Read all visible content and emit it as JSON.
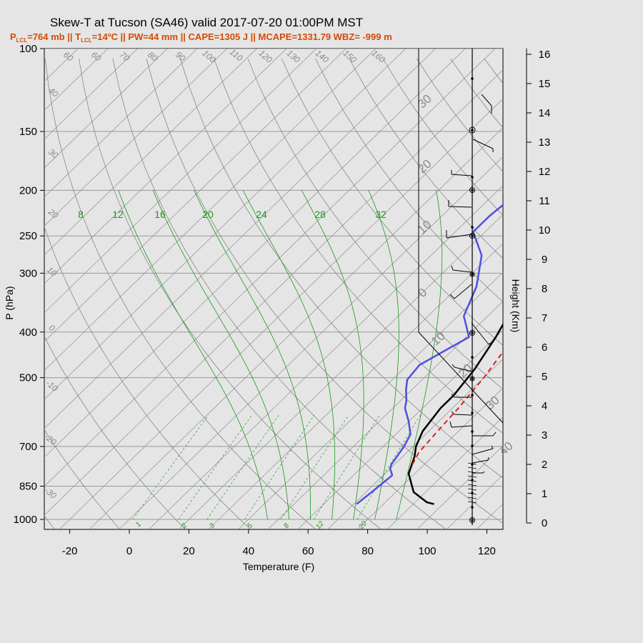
{
  "header": {
    "title": "Skew-T at Tucson (SA46) valid 2017-07-20 01:00PM MST",
    "subtitle": "P<tspan baseline-shift='sub' font-size='8'>LCL</tspan>=764 mb || T<tspan baseline-shift='sub' font-size='8'>LCL</tspan>=14ºC || PW=44 mm || CAPE=1305 J || MCAPE=1331.79 WBZ= -999 m",
    "subtitle_plain": {
      "p_lcl_label": "P",
      "p_lcl_sub": "LCL",
      "p_lcl_value": "=764 mb || T",
      "t_lcl_sub": "LCL",
      "rest": "=14ºC || PW=44 mm || CAPE=1305 J || MCAPE=1331.79 WBZ= -999 m"
    }
  },
  "colors": {
    "background": "#e5e5e5",
    "temperature": "#000000",
    "dewpoint": "#4f4fe0",
    "parcel": "#dd1111",
    "mixing_ratio": "#1a9a1a",
    "isotherm": "#8a8a8a"
  },
  "chart_data": {
    "type": "line",
    "xlabel": "Temperature (F)",
    "ylabel": "P (hPa)",
    "right_label": "Height (Km)",
    "xlim": [
      -28,
      125
    ],
    "ylim": [
      1000,
      100
    ],
    "y_scale": "log",
    "x_ticks": [
      -20,
      0,
      20,
      40,
      60,
      80,
      100,
      120
    ],
    "pressure_ticks": [
      100,
      150,
      200,
      250,
      300,
      400,
      500,
      700,
      850,
      1000
    ],
    "height_ticks": [
      0,
      1,
      2,
      3,
      4,
      5,
      6,
      7,
      8,
      9,
      10,
      11,
      12,
      13,
      14,
      15,
      16
    ],
    "grid": true,
    "series": [
      {
        "key": "temperature",
        "points": [
          [
            97,
            928
          ],
          [
            94,
            920
          ],
          [
            86,
            875
          ],
          [
            78,
            800
          ],
          [
            74,
            735
          ],
          [
            71,
            700
          ],
          [
            68,
            650
          ],
          [
            66,
            580
          ],
          [
            66,
            545
          ],
          [
            64,
            480
          ],
          [
            60,
            410
          ],
          [
            55,
            350
          ],
          [
            49,
            300
          ],
          [
            42,
            252
          ],
          [
            36,
            217
          ],
          [
            31,
            190
          ],
          [
            29,
            172
          ],
          [
            28,
            153
          ],
          [
            31,
            130
          ],
          [
            39,
            112
          ],
          [
            44,
            100
          ]
        ]
      },
      {
        "key": "dewpoint",
        "points": [
          [
            71,
            928
          ],
          [
            72,
            870
          ],
          [
            73,
            806
          ],
          [
            70,
            780
          ],
          [
            69,
            765
          ],
          [
            67,
            700
          ],
          [
            65,
            660
          ],
          [
            60,
            620
          ],
          [
            54,
            580
          ],
          [
            52,
            560
          ],
          [
            48,
            530
          ],
          [
            45,
            505
          ],
          [
            44,
            470
          ],
          [
            51,
            410
          ],
          [
            42,
            370
          ],
          [
            36,
            320
          ],
          [
            27,
            275
          ],
          [
            16,
            245
          ],
          [
            16,
            227
          ],
          [
            18,
            195
          ],
          [
            18,
            172
          ],
          [
            17,
            152
          ],
          [
            15,
            128
          ],
          [
            25,
            100
          ]
        ]
      },
      {
        "key": "parcel",
        "points": [
          [
            76,
            764
          ],
          [
            74,
            720
          ],
          [
            73,
            650
          ],
          [
            72,
            580
          ],
          [
            70,
            500
          ],
          [
            67,
            430
          ],
          [
            61,
            360
          ],
          [
            54,
            300
          ],
          [
            47,
            250
          ],
          [
            41,
            210
          ],
          [
            35,
            188
          ]
        ]
      }
    ],
    "mixing_ratio_labels": [
      "8",
      "12",
      "16",
      "20",
      "24",
      "28",
      "32"
    ],
    "mixing_ratio_bottom_labels": [
      "1",
      "2",
      "3",
      "5",
      "8",
      "12",
      "20"
    ],
    "isotherm_labels_top": [
      "60",
      "60",
      "70",
      "80",
      "90",
      "100",
      "110",
      "120",
      "130",
      "140",
      "150",
      "160"
    ],
    "isotherm_labels_left": [
      "40",
      "30",
      "20",
      "10",
      "0",
      "-10",
      "-20",
      "-30"
    ],
    "isotherm_labels_right": [
      "30",
      "20",
      "10",
      "0",
      "10",
      "20",
      "30",
      "40"
    ]
  }
}
